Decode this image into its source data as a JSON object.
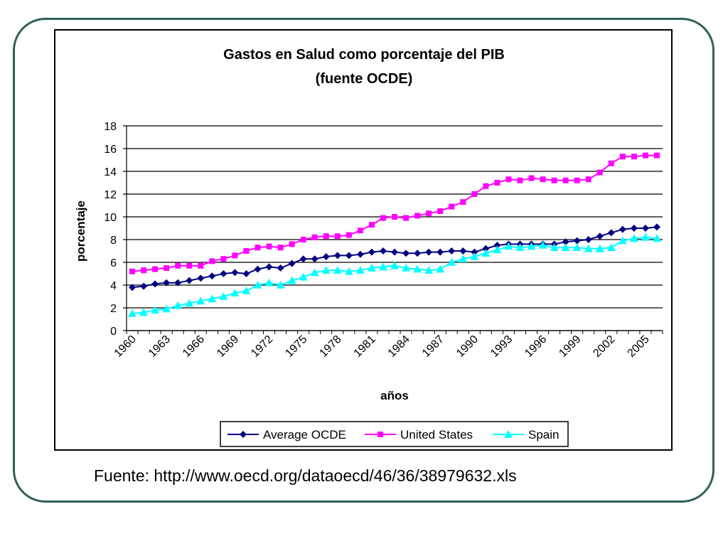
{
  "chart_data": {
    "type": "line",
    "title": "Gastos en Salud como porcentaje del PIB",
    "subtitle": "(fuente OCDE)",
    "xlabel": "años",
    "ylabel": "porcentaje",
    "ylim": [
      0,
      18
    ],
    "yticks": [
      "0",
      "2",
      "4",
      "6",
      "8",
      "10",
      "12",
      "14",
      "16",
      "18"
    ],
    "xtick_labels": [
      "1960",
      "1963",
      "1966",
      "1969",
      "1972",
      "1975",
      "1978",
      "1981",
      "1984",
      "1987",
      "1990",
      "1993",
      "1996",
      "1999",
      "2002",
      "2005"
    ],
    "grid": "horizontal",
    "legend_position": "bottom",
    "x": [
      1960,
      1961,
      1962,
      1963,
      1964,
      1965,
      1966,
      1967,
      1968,
      1969,
      1970,
      1971,
      1972,
      1973,
      1974,
      1975,
      1976,
      1977,
      1978,
      1979,
      1980,
      1981,
      1982,
      1983,
      1984,
      1985,
      1986,
      1987,
      1988,
      1989,
      1990,
      1991,
      1992,
      1993,
      1994,
      1995,
      1996,
      1997,
      1998,
      1999,
      2000,
      2001,
      2002,
      2003,
      2004,
      2005,
      2006
    ],
    "series": [
      {
        "name": "Average OCDE",
        "color": "#000080",
        "marker": "diamond",
        "values": [
          3.8,
          3.9,
          4.1,
          4.2,
          4.2,
          4.4,
          4.6,
          4.8,
          5.0,
          5.1,
          5.0,
          5.4,
          5.6,
          5.5,
          5.9,
          6.3,
          6.3,
          6.5,
          6.6,
          6.6,
          6.7,
          6.9,
          7.0,
          6.9,
          6.8,
          6.8,
          6.9,
          6.9,
          7.0,
          7.0,
          6.9,
          7.2,
          7.5,
          7.6,
          7.6,
          7.6,
          7.6,
          7.6,
          7.8,
          7.9,
          8.0,
          8.3,
          8.6,
          8.9,
          9.0,
          9.0,
          9.1
        ]
      },
      {
        "name": "United States",
        "color": "#ff00ff",
        "marker": "square",
        "values": [
          5.2,
          5.3,
          5.4,
          5.5,
          5.7,
          5.7,
          5.7,
          6.1,
          6.3,
          6.6,
          7.0,
          7.3,
          7.4,
          7.3,
          7.6,
          8.0,
          8.2,
          8.3,
          8.3,
          8.4,
          8.8,
          9.3,
          9.9,
          10.0,
          9.9,
          10.1,
          10.3,
          10.5,
          10.9,
          11.3,
          12.0,
          12.7,
          13.0,
          13.3,
          13.2,
          13.4,
          13.3,
          13.2,
          13.2,
          13.2,
          13.3,
          13.9,
          14.7,
          15.3,
          15.3,
          15.4,
          15.4
        ]
      },
      {
        "name": "Spain",
        "color": "#00ffff",
        "marker": "triangle",
        "values": [
          1.5,
          1.6,
          1.8,
          1.9,
          2.2,
          2.4,
          2.6,
          2.8,
          3.0,
          3.3,
          3.5,
          4.0,
          4.2,
          4.0,
          4.4,
          4.7,
          5.1,
          5.3,
          5.3,
          5.2,
          5.3,
          5.5,
          5.6,
          5.7,
          5.5,
          5.4,
          5.3,
          5.4,
          6.0,
          6.3,
          6.5,
          6.8,
          7.1,
          7.4,
          7.3,
          7.4,
          7.5,
          7.3,
          7.3,
          7.3,
          7.2,
          7.2,
          7.3,
          7.9,
          8.1,
          8.2,
          8.1
        ]
      }
    ]
  },
  "source": {
    "text": "Fuente: http://www.oecd.org/dataoecd/46/36/38979632.xls"
  }
}
